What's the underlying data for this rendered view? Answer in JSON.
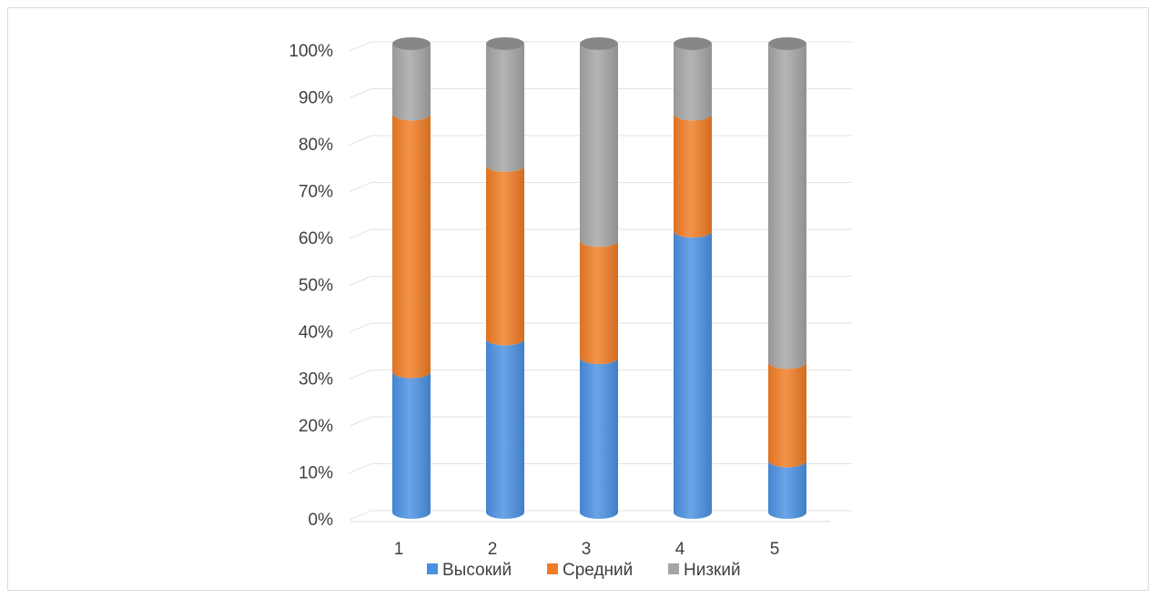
{
  "chart_data": {
    "type": "bar",
    "subtype": "stacked-100-percent-3d-cylinder",
    "categories": [
      "1",
      "2",
      "3",
      "4",
      "5"
    ],
    "series": [
      {
        "name": "Высокий",
        "color": "#4a90e2",
        "values": [
          30,
          37,
          33,
          60,
          11
        ]
      },
      {
        "name": "Средний",
        "color": "#f07c24",
        "values": [
          55,
          37,
          25,
          25,
          21
        ]
      },
      {
        "name": "Низкий",
        "color": "#a5a5a5",
        "values": [
          15,
          26,
          42,
          15,
          68
        ]
      }
    ],
    "y_ticks": [
      "0%",
      "10%",
      "20%",
      "30%",
      "40%",
      "50%",
      "60%",
      "70%",
      "80%",
      "90%",
      "100%"
    ],
    "ylim": [
      0,
      100
    ],
    "grid": true,
    "legend_position": "bottom",
    "title": "",
    "xlabel": "",
    "ylabel": ""
  }
}
